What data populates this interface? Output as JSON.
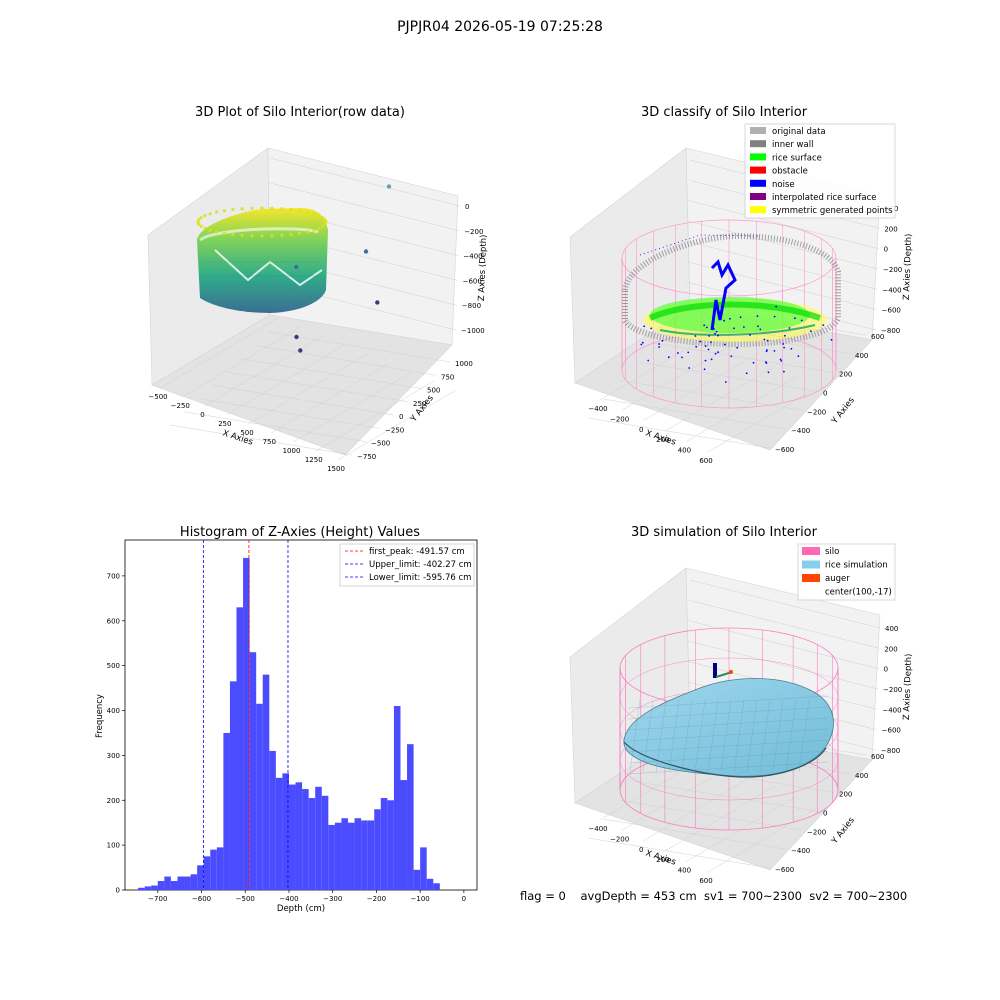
{
  "figure": {
    "suptitle": "PJPJR04 2026-05-19 07:25:28",
    "footer": "flag = 0    avgDepth = 453 cm  sv1 = 700~2300  sv2 = 700~2300"
  },
  "chart_data": [
    {
      "id": "raw3d",
      "type": "scatter",
      "projection": "3d",
      "title": "3D Plot of Silo Interior(row data)",
      "xlabel": "X Axies",
      "ylabel": "Y Axies",
      "zlabel": "Z Axies (Depth)",
      "xticks": [
        "−500",
        "−250",
        "0",
        "250",
        "500",
        "750",
        "1000",
        "1250",
        "1500"
      ],
      "yticks": [
        "−750",
        "−500",
        "−250",
        "0",
        "250",
        "500",
        "750",
        "1000"
      ],
      "zticks": [
        "0",
        "−200",
        "−400",
        "−600",
        "−800",
        "−1000"
      ],
      "colormap": "viridis",
      "outliers": [
        {
          "x": 1000,
          "y": 800,
          "z": -650
        },
        {
          "x": 1250,
          "y": 250,
          "z": -950
        },
        {
          "x": 800,
          "y": 700,
          "z": -830
        },
        {
          "x": 650,
          "y": -250,
          "z": -820
        },
        {
          "x": 900,
          "y": -600,
          "z": -1000
        },
        {
          "x": 1050,
          "y": -750,
          "z": -1030
        }
      ]
    },
    {
      "id": "classify3d",
      "type": "scatter",
      "projection": "3d",
      "title": "3D classify of Silo Interior",
      "xlabel": "X Axies",
      "ylabel": "Y Axies",
      "zlabel": "Z Axies (Depth)",
      "xticks": [
        "−400",
        "−200",
        "0",
        "200",
        "400",
        "600"
      ],
      "yticks": [
        "−600",
        "−400",
        "−200",
        "0",
        "200",
        "400",
        "600"
      ],
      "zticks": [
        "400",
        "200",
        "0",
        "−200",
        "−400",
        "−600",
        "−800"
      ],
      "legend_position": "upper right",
      "series": [
        {
          "name": "original data",
          "color": "#b0b0b0"
        },
        {
          "name": "inner wall",
          "color": "#808080"
        },
        {
          "name": "rice surface",
          "color": "#00ff00"
        },
        {
          "name": "obstacle",
          "color": "#ff0000"
        },
        {
          "name": "noise",
          "color": "#0000ff"
        },
        {
          "name": "interpolated rice surface",
          "color": "#800080"
        },
        {
          "name": "symmetric generated points",
          "color": "#ffff00"
        }
      ]
    },
    {
      "id": "histogram",
      "type": "bar",
      "title": "Histogram of Z-Axies (Height) Values",
      "xlabel": "Depth (cm)",
      "ylabel": "Frequency",
      "xlim": [
        -775,
        30
      ],
      "ylim": [
        0,
        780
      ],
      "xticks": [
        -700,
        -600,
        -500,
        -400,
        -300,
        -200,
        -100,
        0
      ],
      "xtick_labels": [
        "−700",
        "−600",
        "−500",
        "−400",
        "−300",
        "−200",
        "−100",
        "0"
      ],
      "yticks": [
        0,
        100,
        200,
        300,
        400,
        500,
        600,
        700
      ],
      "yticks_labels": [
        "0",
        "100",
        "200",
        "300",
        "400",
        "500",
        "600",
        "700"
      ],
      "bar_color": "#4c4cff",
      "bin_start": -745,
      "bin_width": 15,
      "values": [
        5,
        8,
        10,
        20,
        30,
        20,
        30,
        30,
        35,
        55,
        75,
        90,
        95,
        350,
        465,
        630,
        740,
        530,
        415,
        480,
        310,
        250,
        260,
        235,
        240,
        225,
        205,
        230,
        210,
        145,
        150,
        160,
        150,
        160,
        155,
        155,
        180,
        205,
        200,
        410,
        245,
        325,
        45,
        95,
        25,
        15
      ],
      "lines": [
        {
          "label": "first_peak: -491.57 cm",
          "x": -491.57,
          "color": "#ff0000"
        },
        {
          "label": "Upper_limit: -402.27 cm",
          "x": -402.27,
          "color": "#0000ff"
        },
        {
          "label": "Lower_limit: -595.76 cm",
          "x": -595.76,
          "color": "#0000ff"
        }
      ],
      "legend_position": "upper right"
    },
    {
      "id": "sim3d",
      "type": "surface",
      "projection": "3d",
      "title": "3D simulation of Silo Interior",
      "xlabel": "X Axies",
      "ylabel": "Y Axies",
      "zlabel": "Z Axies (Depth)",
      "xticks": [
        "−400",
        "−200",
        "0",
        "200",
        "400",
        "600"
      ],
      "yticks": [
        "−600",
        "−400",
        "−200",
        "0",
        "200",
        "400",
        "600"
      ],
      "zticks": [
        "400",
        "200",
        "0",
        "−200",
        "−400",
        "−600",
        "−800"
      ],
      "legend_position": "upper right",
      "series": [
        {
          "name": "silo",
          "color": "#ff69b4"
        },
        {
          "name": "rice simulation",
          "color": "#87ceeb"
        },
        {
          "name": "auger",
          "color": "#ff4500"
        },
        {
          "name": "center(100,-17)",
          "color": ""
        }
      ]
    }
  ]
}
